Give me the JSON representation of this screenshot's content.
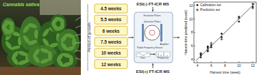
{
  "photo": {
    "label": "Cannabis sativa"
  },
  "growth": {
    "title": "Period of growth",
    "periods": [
      "4.5 weeks",
      "5.5 weeks",
      "6 weeks",
      "7.5 weeks",
      "10 weeks",
      "12 weeks"
    ]
  },
  "instrument": {
    "top": "ESI(-) FT-ICR MS",
    "bottom": "ESI(+) FT-ICR MS",
    "parts": [
      "Excitation Plates",
      "Detection Plates",
      "Amplifier",
      "Radio Frequency Source",
      "Time",
      "Frequency"
    ]
  },
  "chart_data": {
    "type": "scatter",
    "x_label": "Harvest time (week)",
    "y_label": "Harvest time predicted (week)",
    "xlim": [
      3.5,
      12.5
    ],
    "ylim": [
      3.5,
      12.5
    ],
    "xticks": [
      4,
      6,
      8,
      10,
      12
    ],
    "yticks": [
      4,
      6,
      8,
      10,
      12
    ],
    "grid": false,
    "legend": "top-left",
    "series": [
      {
        "name": "Calibration set",
        "type": "scatter",
        "marker": "circle",
        "color": "#222222",
        "x": [
          4.5,
          4.5,
          4.5,
          5.5,
          5.5,
          5.5,
          6,
          6,
          7.5,
          7.5,
          10,
          10,
          12,
          12
        ],
        "values": [
          4.3,
          4.6,
          4.8,
          5.2,
          5.7,
          5.9,
          6.1,
          5.8,
          7.3,
          7.8,
          9.6,
          10.3,
          11.8,
          12.2
        ]
      },
      {
        "name": "Prediction set",
        "type": "scatter",
        "marker": "plus",
        "color": "#222222",
        "x": [
          4.5,
          5.5,
          6,
          7.5,
          10,
          12
        ],
        "values": [
          4.9,
          5.4,
          6.4,
          7.0,
          10.1,
          11.6
        ]
      },
      {
        "type": "line",
        "line_style": "solid",
        "color": "#222222",
        "x": [
          3.8,
          12.3
        ],
        "values": [
          3.8,
          12.3
        ]
      }
    ]
  }
}
